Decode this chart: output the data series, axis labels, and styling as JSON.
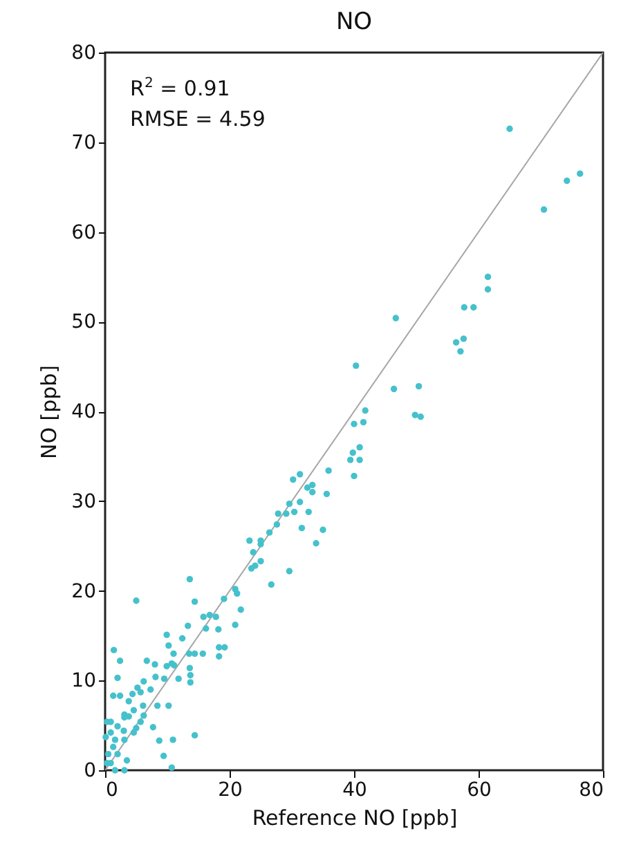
{
  "chart_data": {
    "type": "scatter",
    "title": "NO",
    "xlabel": "Reference NO [ppb]",
    "ylabel": "NO [ppb]",
    "annotations": [
      "R$^{2}$ = 0.91",
      "RMSE = 4.59"
    ],
    "xlim": [
      0,
      80
    ],
    "ylim": [
      0,
      80
    ],
    "xticks": [
      0,
      20,
      40,
      60,
      80
    ],
    "yticks": [
      0,
      10,
      20,
      30,
      40,
      50,
      60,
      70,
      80
    ],
    "grid": false,
    "series": [
      {
        "color": "#45c1cc",
        "marker": "circle",
        "x": [
          65.0,
          74.2,
          76.3,
          70.5,
          61.5,
          61.5,
          57.7,
          59.2,
          56.4,
          57.6,
          57.1,
          46.7,
          40.3,
          46.4,
          50.4,
          41.8,
          40.0,
          41.5,
          49.8,
          50.7,
          39.8,
          40.9,
          39.4,
          40.9,
          40.0,
          35.9,
          30.2,
          31.3,
          32.5,
          33.3,
          33.3,
          31.3,
          29.6,
          35.6,
          27.8,
          29.1,
          30.4,
          32.7,
          31.6,
          35.0,
          33.9,
          26.4,
          27.6,
          23.2,
          25.0,
          23.8,
          25.0,
          25.0,
          24.1,
          23.5,
          29.6,
          26.7,
          13.6,
          14.4,
          5.0,
          20.9,
          21.2,
          19.1,
          16.8,
          15.8,
          17.8,
          21.8,
          20.9,
          18.2,
          16.2,
          13.3,
          12.4,
          9.9,
          10.2,
          11.0,
          13.5,
          14.4,
          15.7,
          18.3,
          19.2,
          18.3,
          10.7,
          9.9,
          11.1,
          8.0,
          6.7,
          2.4,
          1.4,
          13.6,
          13.7,
          13.7,
          11.8,
          9.5,
          8.1,
          6.2,
          5.2,
          5.7,
          4.4,
          2.0,
          1.3,
          2.4,
          3.8,
          7.3,
          8.4,
          10.2,
          6.1,
          4.6,
          3.1,
          3.8,
          6.2,
          5.7,
          3.1,
          0.3,
          0.9,
          2.0,
          7.7,
          5.0,
          4.6,
          3.0,
          0.9,
          0.1,
          1.6,
          3.1,
          14.4,
          8.7,
          10.9,
          1.3,
          0.5,
          2.0,
          9.4,
          3.5,
          0.9,
          0.3,
          10.7,
          1.6,
          3.1
        ],
        "values": [
          71.5,
          65.7,
          66.5,
          62.5,
          55.0,
          53.6,
          51.6,
          51.6,
          47.7,
          48.1,
          46.7,
          50.4,
          45.1,
          42.5,
          42.8,
          40.1,
          38.6,
          38.8,
          39.6,
          39.4,
          35.4,
          36.0,
          34.6,
          34.6,
          32.8,
          33.4,
          32.4,
          33.0,
          31.5,
          31.8,
          31.0,
          29.9,
          29.7,
          30.8,
          28.6,
          28.6,
          28.8,
          28.8,
          27.0,
          26.8,
          25.3,
          26.5,
          27.4,
          25.6,
          25.6,
          24.3,
          25.2,
          23.3,
          22.8,
          22.5,
          22.2,
          20.7,
          21.3,
          18.8,
          18.9,
          20.2,
          19.7,
          19.1,
          17.3,
          17.1,
          17.1,
          17.9,
          16.2,
          15.7,
          15.8,
          16.1,
          14.7,
          15.1,
          13.9,
          13.0,
          13.0,
          13.0,
          13.0,
          13.7,
          13.7,
          12.7,
          11.9,
          11.6,
          11.7,
          11.8,
          12.2,
          12.2,
          13.4,
          11.4,
          10.6,
          9.8,
          10.2,
          10.2,
          10.4,
          9.9,
          9.2,
          8.7,
          8.5,
          10.3,
          8.3,
          8.3,
          7.7,
          9.0,
          7.2,
          7.2,
          7.2,
          6.7,
          6.2,
          6.0,
          6.1,
          5.4,
          5.9,
          5.4,
          5.4,
          4.9,
          4.8,
          4.7,
          4.2,
          4.4,
          4.2,
          3.7,
          3.4,
          3.4,
          3.9,
          3.3,
          3.4,
          2.6,
          1.8,
          1.8,
          1.6,
          1.1,
          0.8,
          0.8,
          0.3,
          0.0,
          0.0
        ]
      },
      {
        "type": "line",
        "color": "#a6a6a6",
        "x": [
          0,
          80
        ],
        "values": [
          0,
          80
        ]
      }
    ]
  }
}
